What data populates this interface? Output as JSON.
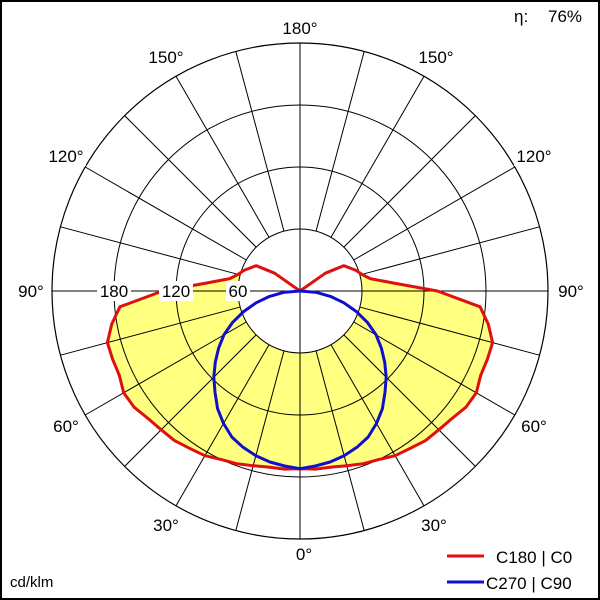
{
  "efficiency": {
    "symbol": "η:",
    "value": "76%"
  },
  "unit_label": "cd/klm",
  "chart_data": {
    "type": "polar",
    "angle_labels": [
      "180°",
      "150°",
      "150°",
      "120°",
      "120°",
      "90°",
      "90°",
      "60°",
      "60°",
      "30°",
      "30°",
      "0°"
    ],
    "radial_labels": [
      "180",
      "120",
      "60"
    ],
    "radial_ticks": [
      60,
      120,
      180,
      240
    ],
    "rlim": [
      0,
      240
    ],
    "angle_step_deg": 15,
    "grid": true,
    "legend_position": "bottom-right",
    "series": [
      {
        "name": "C180 | C0",
        "color": "#e01010",
        "fill": "#ffff80",
        "angles_deg": [
          0,
          5,
          10,
          15,
          20,
          25,
          30,
          35,
          40,
          45,
          50,
          55,
          60,
          65,
          70,
          75,
          80,
          85,
          90,
          95,
          100,
          105,
          110,
          115,
          120,
          125,
          130
        ],
        "values": [
          172,
          173,
          173,
          175,
          178,
          180,
          184,
          186,
          189,
          190,
          192,
          196,
          197,
          193,
          193,
          193,
          185,
          175,
          133,
          90,
          69,
          62,
          58,
          53,
          49,
          30,
          0
        ]
      },
      {
        "name": "C270 | C90",
        "color": "#1010cc",
        "angles_deg": [
          0,
          5,
          10,
          15,
          20,
          25,
          30,
          35,
          40,
          45,
          50,
          55,
          60,
          65,
          70,
          75,
          80,
          85,
          90
        ],
        "values": [
          172,
          170,
          168,
          165,
          161,
          156,
          148,
          139,
          128,
          118,
          107,
          96,
          85,
          72,
          58,
          44,
          30,
          16,
          0
        ]
      }
    ]
  }
}
